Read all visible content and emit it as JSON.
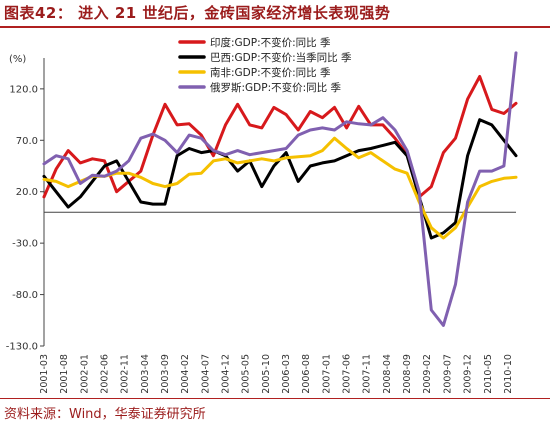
{
  "title": "图表42：  进入 21 世纪后，金砖国家经济增长表现强势",
  "source": "资料来源：Wind，华泰证券研究所",
  "colors": {
    "title": "#9b1c1c",
    "india": "#d7191c",
    "brazil": "#000000",
    "southafrica": "#f5c000",
    "russia": "#8060b0"
  },
  "chart_data": {
    "type": "line",
    "unit_label": "(%)",
    "ylim": [
      -130,
      150
    ],
    "yticks": [
      -130,
      -80,
      -30,
      20,
      70,
      120
    ],
    "ytick_labels": [
      "-130.0",
      "-80.0",
      "-30.0",
      "20.0",
      "70.0",
      "120.0"
    ],
    "xtick_labels": [
      "2001-03",
      "2001-08",
      "2002-01",
      "2002-06",
      "2002-11",
      "2003-04",
      "2003-09",
      "2004-02",
      "2004-07",
      "2004-12",
      "2005-05",
      "2005-10",
      "2006-03",
      "2006-08",
      "2007-01",
      "2007-06",
      "2007-11",
      "2008-04",
      "2008-09",
      "2009-02",
      "2009-07",
      "2009-12",
      "2010-05",
      "2010-10"
    ],
    "x": [
      "2001-03",
      "2001-06",
      "2001-09",
      "2001-12",
      "2002-03",
      "2002-06",
      "2002-09",
      "2002-12",
      "2003-03",
      "2003-06",
      "2003-09",
      "2003-12",
      "2004-03",
      "2004-06",
      "2004-09",
      "2004-12",
      "2005-03",
      "2005-06",
      "2005-09",
      "2005-12",
      "2006-03",
      "2006-06",
      "2006-09",
      "2006-12",
      "2007-03",
      "2007-06",
      "2007-09",
      "2007-12",
      "2008-03",
      "2008-06",
      "2008-09",
      "2008-12",
      "2009-03",
      "2009-06",
      "2009-09",
      "2009-12",
      "2010-03",
      "2010-06",
      "2010-09",
      "2010-12"
    ],
    "grid": false,
    "legend_position": "top-center",
    "series": [
      {
        "name": "印度:GDP:不变价:同比 季",
        "color": "#d7191c",
        "values": [
          15,
          42,
          60,
          48,
          52,
          50,
          20,
          30,
          40,
          75,
          105,
          85,
          86,
          75,
          55,
          85,
          105,
          85,
          82,
          102,
          95,
          80,
          98,
          92,
          102,
          82,
          103,
          85,
          85,
          72,
          56,
          15,
          25,
          58,
          72,
          110,
          132,
          100,
          96,
          106
        ]
      },
      {
        "name": "巴西:GDP:不变价:当季同比 季",
        "color": "#000000",
        "values": [
          35,
          20,
          5,
          15,
          30,
          45,
          50,
          30,
          10,
          8,
          8,
          55,
          62,
          58,
          60,
          55,
          40,
          50,
          25,
          45,
          58,
          30,
          45,
          48,
          50,
          55,
          60,
          62,
          65,
          68,
          55,
          15,
          -25,
          -20,
          -10,
          55,
          90,
          85,
          70,
          55
        ]
      },
      {
        "name": "南非:GDP:不变价:同比 季",
        "color": "#f5c000",
        "values": [
          32,
          30,
          25,
          30,
          35,
          35,
          38,
          38,
          34,
          28,
          25,
          28,
          37,
          38,
          50,
          52,
          48,
          50,
          52,
          50,
          53,
          54,
          55,
          60,
          72,
          62,
          53,
          58,
          50,
          42,
          38,
          10,
          -15,
          -25,
          -15,
          5,
          25,
          30,
          33,
          34
        ]
      },
      {
        "name": "俄罗斯:GDP:不变价:同比 季",
        "color": "#8060b0",
        "values": [
          47,
          55,
          52,
          28,
          36,
          35,
          40,
          50,
          72,
          76,
          70,
          58,
          75,
          72,
          60,
          56,
          60,
          56,
          58,
          60,
          62,
          75,
          80,
          82,
          80,
          88,
          86,
          85,
          92,
          80,
          60,
          20,
          -95,
          -110,
          -70,
          10,
          40,
          40,
          45,
          155
        ]
      }
    ]
  }
}
